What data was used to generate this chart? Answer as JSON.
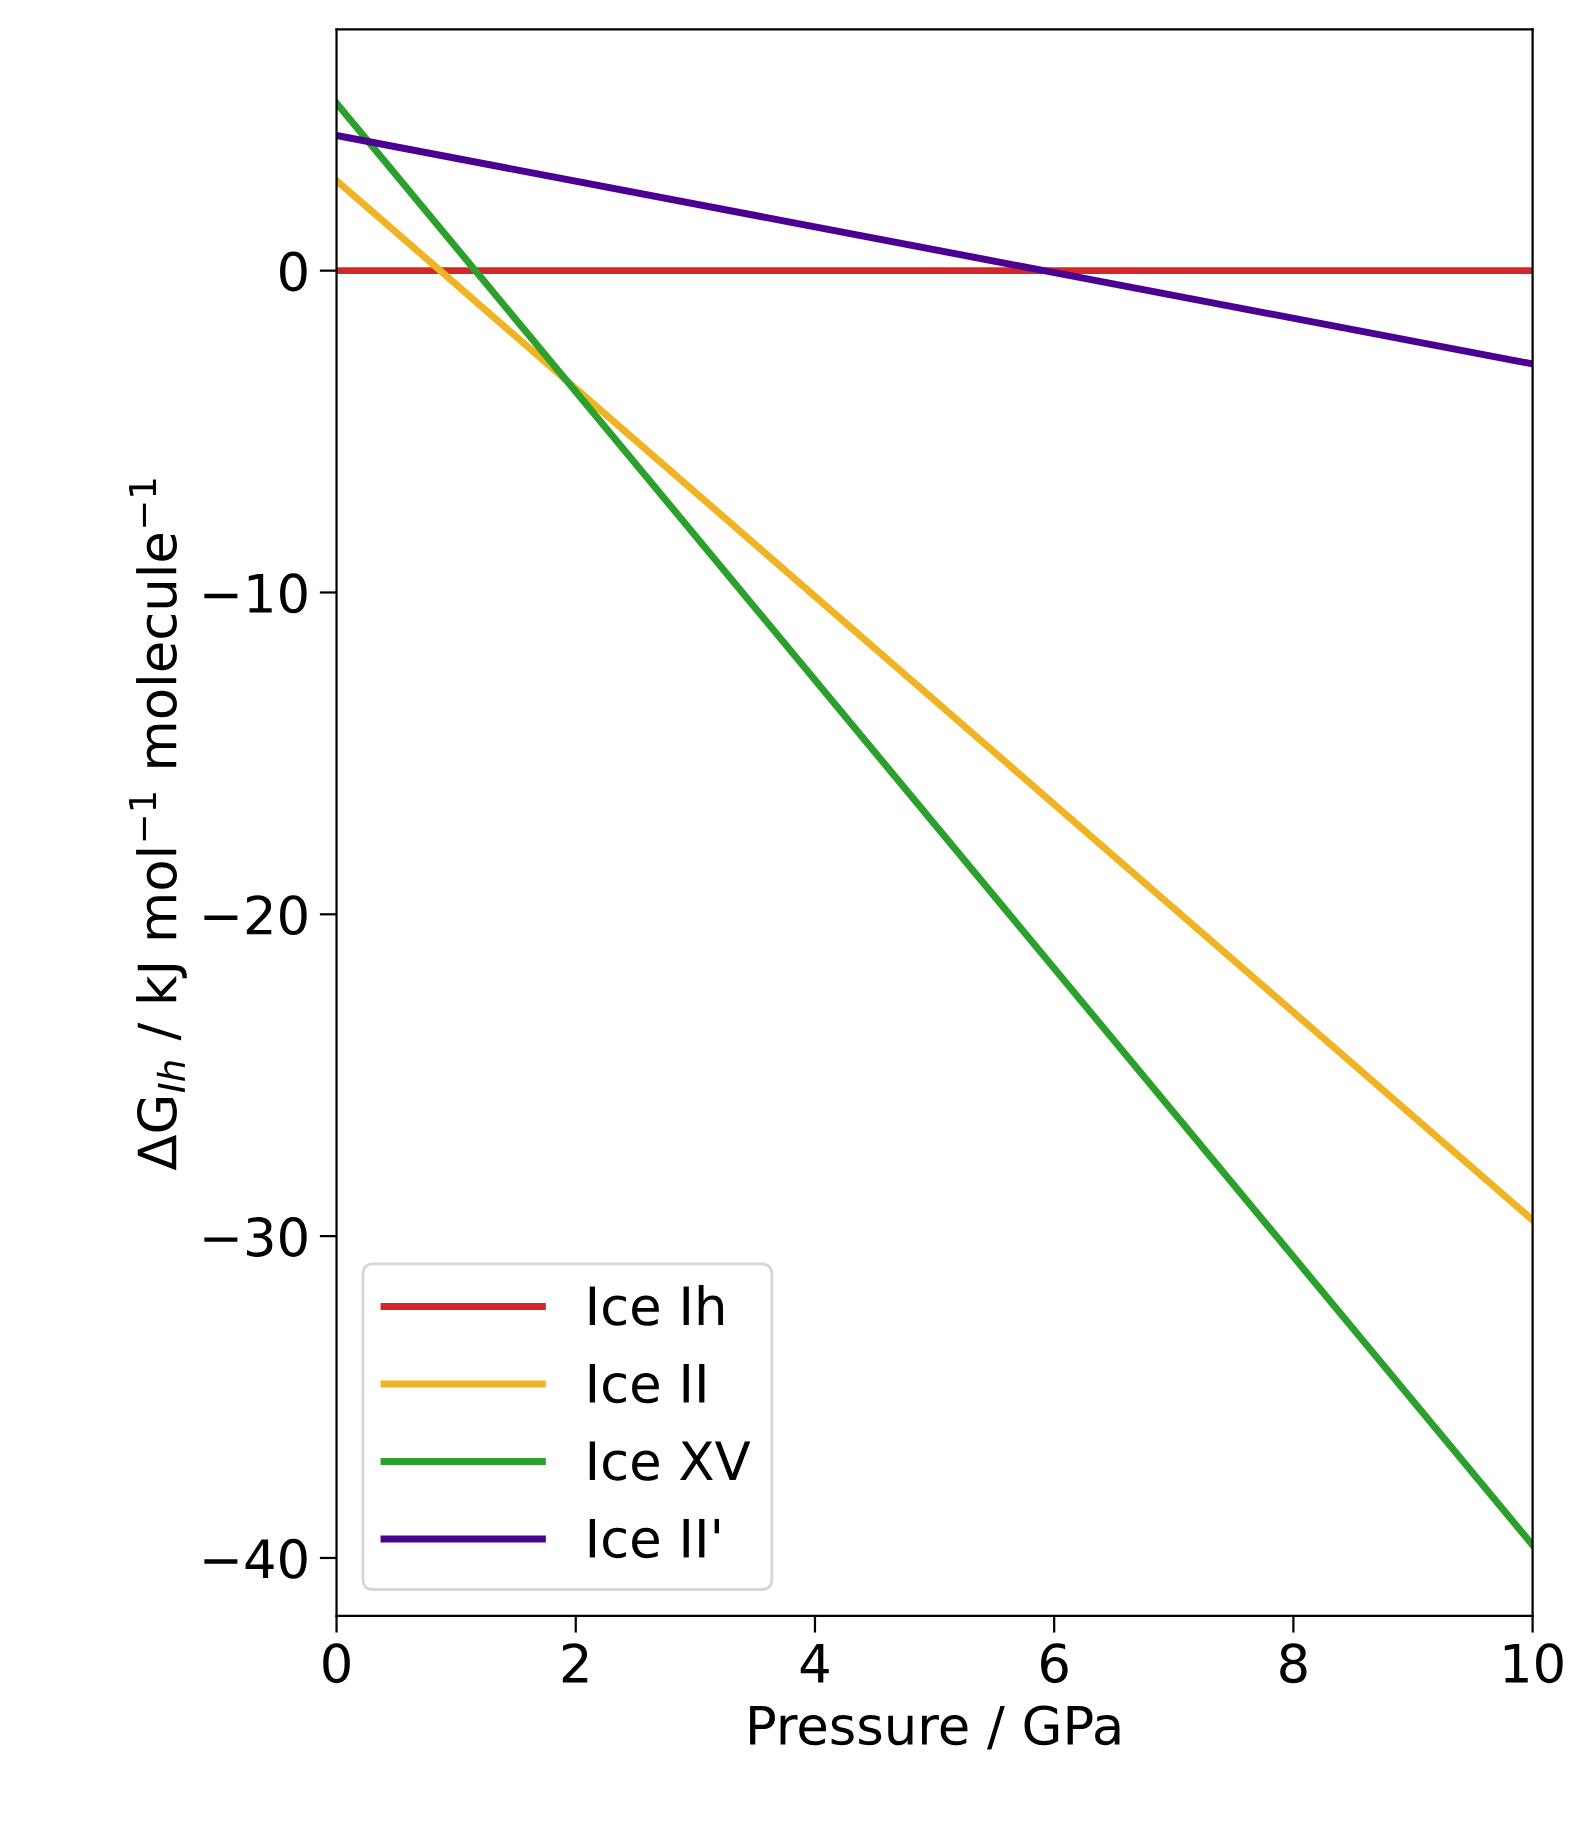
{
  "chart_data": {
    "type": "line",
    "x": [
      0,
      10
    ],
    "series": [
      {
        "name": "Ice Ih",
        "color": "#d62728",
        "values": [
          0,
          0
        ]
      },
      {
        "name": "Ice II",
        "color": "#f0b323",
        "values": [
          2.8,
          -29.5
        ]
      },
      {
        "name": "Ice XV",
        "color": "#2ca02c",
        "values": [
          5.2,
          -39.6
        ]
      },
      {
        "name": "Ice II'",
        "color": "#4b0092",
        "values": [
          4.2,
          -2.9
        ]
      }
    ],
    "xlabel": "Pressure / GPa",
    "ylabel": "ΔG$_{Ih}$ / kJ mol$^{−1}$ molecule$^{−1}$",
    "xlim": [
      0,
      10
    ],
    "ylim": [
      -41.8,
      7.5
    ],
    "xticks": [
      0,
      2,
      4,
      6,
      8,
      10
    ],
    "yticks": [
      {
        "value": -40,
        "label": "−40"
      },
      {
        "value": -30,
        "label": "−30"
      },
      {
        "value": -20,
        "label": "−20"
      },
      {
        "value": -10,
        "label": "−10"
      },
      0
    ],
    "grid": false,
    "legend": "bottom left",
    "marker": "none",
    "line_style": "solid"
  }
}
